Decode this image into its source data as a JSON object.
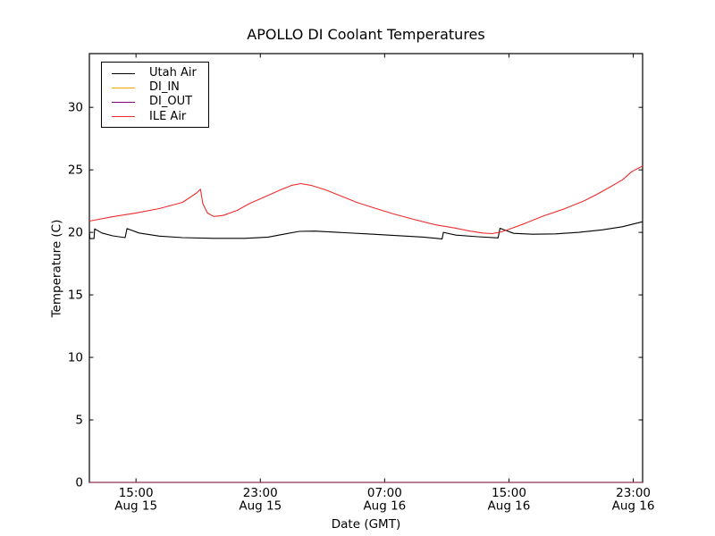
{
  "chart_data": {
    "type": "line",
    "title": "APOLLO DI Coolant Temperatures",
    "xlabel": "Date (GMT)",
    "ylabel": "Temperature (C)",
    "x_unit": "hours after Aug 15 12:00 GMT",
    "xlim": [
      0,
      35.6
    ],
    "ylim": [
      0,
      34.3
    ],
    "grid": false,
    "y_ticks": [
      0,
      5,
      10,
      15,
      20,
      25,
      30
    ],
    "x_ticks": [
      {
        "t": 3,
        "time": "15:00",
        "date": "Aug 15"
      },
      {
        "t": 11,
        "time": "23:00",
        "date": "Aug 15"
      },
      {
        "t": 19,
        "time": "07:00",
        "date": "Aug 16"
      },
      {
        "t": 27,
        "time": "15:00",
        "date": "Aug 16"
      },
      {
        "t": 35,
        "time": "23:00",
        "date": "Aug 16"
      }
    ],
    "legend": {
      "position": "upper-left",
      "entries": [
        "Utah Air",
        "DI_IN",
        "DI_OUT",
        "ILE Air"
      ]
    },
    "series": [
      {
        "name": "Utah Air",
        "color": "#000000",
        "points": [
          [
            0,
            20.05
          ],
          [
            0.03,
            19.5
          ],
          [
            0.3,
            19.5
          ],
          [
            0.34,
            20.28
          ],
          [
            0.8,
            19.95
          ],
          [
            1.5,
            19.72
          ],
          [
            2.3,
            19.58
          ],
          [
            2.42,
            20.3
          ],
          [
            3.2,
            19.95
          ],
          [
            4.5,
            19.7
          ],
          [
            6,
            19.58
          ],
          [
            8,
            19.52
          ],
          [
            10,
            19.52
          ],
          [
            11.5,
            19.62
          ],
          [
            12.5,
            19.85
          ],
          [
            13.5,
            20.08
          ],
          [
            14.5,
            20.1
          ],
          [
            16,
            20.0
          ],
          [
            18,
            19.87
          ],
          [
            20,
            19.73
          ],
          [
            21.5,
            19.62
          ],
          [
            22.7,
            19.48
          ],
          [
            22.78,
            20.0
          ],
          [
            23.6,
            19.78
          ],
          [
            25,
            19.65
          ],
          [
            26.3,
            19.56
          ],
          [
            26.42,
            20.33
          ],
          [
            27.3,
            19.92
          ],
          [
            28.5,
            19.85
          ],
          [
            30,
            19.88
          ],
          [
            31.5,
            20.0
          ],
          [
            33,
            20.2
          ],
          [
            34.3,
            20.45
          ],
          [
            35.6,
            20.85
          ]
        ]
      },
      {
        "name": "DI_IN",
        "color": "#ffa500",
        "points": [
          [
            0,
            0
          ],
          [
            35.6,
            0
          ]
        ]
      },
      {
        "name": "DI_OUT",
        "color": "#800080",
        "points": [
          [
            0,
            0
          ],
          [
            35.6,
            0
          ]
        ]
      },
      {
        "name": "ILE Air",
        "color": "#ee2c2c",
        "points": [
          [
            0,
            20.9
          ],
          [
            1.5,
            21.25
          ],
          [
            3,
            21.55
          ],
          [
            4.5,
            21.9
          ],
          [
            6,
            22.4
          ],
          [
            6.9,
            23.15
          ],
          [
            7.15,
            23.45
          ],
          [
            7.3,
            22.3
          ],
          [
            7.6,
            21.55
          ],
          [
            8.0,
            21.27
          ],
          [
            8.6,
            21.35
          ],
          [
            9.5,
            21.75
          ],
          [
            10.3,
            22.3
          ],
          [
            11.3,
            22.85
          ],
          [
            12.3,
            23.4
          ],
          [
            13.0,
            23.75
          ],
          [
            13.6,
            23.9
          ],
          [
            14.3,
            23.75
          ],
          [
            15.2,
            23.4
          ],
          [
            16.2,
            22.9
          ],
          [
            17.2,
            22.4
          ],
          [
            18.2,
            22.0
          ],
          [
            19.5,
            21.5
          ],
          [
            21,
            21.0
          ],
          [
            22.3,
            20.6
          ],
          [
            23.5,
            20.35
          ],
          [
            24.5,
            20.1
          ],
          [
            25.3,
            19.95
          ],
          [
            25.9,
            19.9
          ],
          [
            26.4,
            20.0
          ],
          [
            27,
            20.25
          ],
          [
            28,
            20.7
          ],
          [
            29.2,
            21.3
          ],
          [
            30.5,
            21.85
          ],
          [
            31.8,
            22.5
          ],
          [
            32.6,
            23.0
          ],
          [
            33.4,
            23.55
          ],
          [
            34.3,
            24.2
          ],
          [
            34.9,
            24.85
          ],
          [
            35.2,
            25.05
          ],
          [
            35.6,
            25.3
          ]
        ]
      }
    ]
  },
  "colors": {
    "background": "#ffffff",
    "axis": "#000000",
    "tick_label": "#000000"
  }
}
